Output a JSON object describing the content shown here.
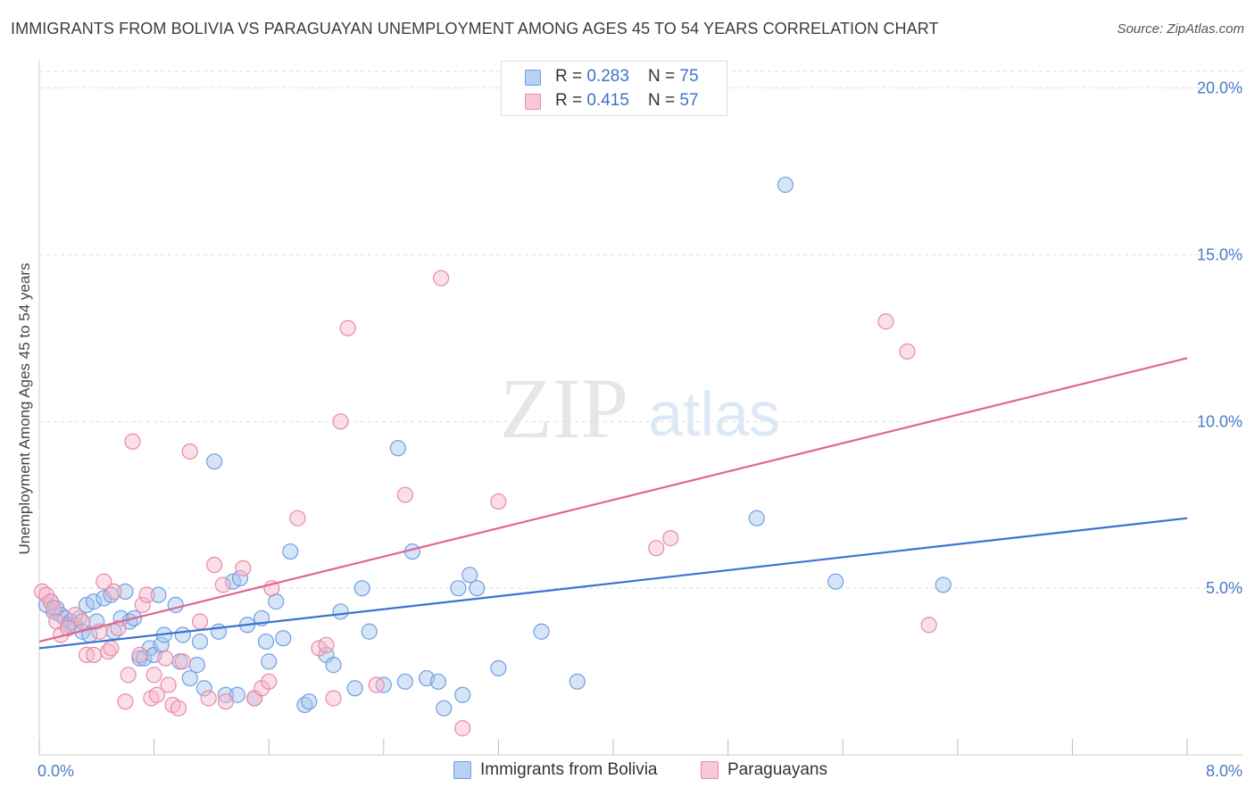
{
  "header": {
    "title": "IMMIGRANTS FROM BOLIVIA VS PARAGUAYAN UNEMPLOYMENT AMONG AGES 45 TO 54 YEARS CORRELATION CHART",
    "source": "Source: ZipAtlas.com"
  },
  "watermark": {
    "zip": "ZIP",
    "atlas": "atlas"
  },
  "legend": {
    "r_label": "R = ",
    "n_label": "N = ",
    "series": [
      {
        "r": "0.283",
        "n": "75",
        "color": "#6fa0e0",
        "fill": "#b8d0f3"
      },
      {
        "r": "0.415",
        "n": "57",
        "color": "#e88aa8",
        "fill": "#f8c8d6"
      }
    ]
  },
  "chart_data": {
    "type": "scatter",
    "ylabel": "Unemployment Among Ages 45 to 54 years",
    "xlim": [
      0,
      8
    ],
    "ylim": [
      0,
      20.5
    ],
    "x_tick_labels": [
      "0.0%",
      "8.0%"
    ],
    "y_ticks": [
      5,
      10,
      15,
      20
    ],
    "y_tick_labels": [
      "5.0%",
      "10.0%",
      "15.0%",
      "20.0%"
    ],
    "grid": true,
    "series": [
      {
        "name": "Immigrants from Bolivia",
        "color": "#3a74d0",
        "point_fill": "rgba(164,196,240,0.45)",
        "point_stroke": "#6fa0e0",
        "trend": [
          [
            0,
            3.2
          ],
          [
            8,
            7.1
          ]
        ],
        "points": [
          [
            0.05,
            4.5
          ],
          [
            0.08,
            4.6
          ],
          [
            0.1,
            4.3
          ],
          [
            0.12,
            4.4
          ],
          [
            0.15,
            4.2
          ],
          [
            0.18,
            4.1
          ],
          [
            0.2,
            3.9
          ],
          [
            0.22,
            4.0
          ],
          [
            0.25,
            3.9
          ],
          [
            0.28,
            4.1
          ],
          [
            0.3,
            3.7
          ],
          [
            0.33,
            4.5
          ],
          [
            0.35,
            3.6
          ],
          [
            0.38,
            4.6
          ],
          [
            0.4,
            4.0
          ],
          [
            0.45,
            4.7
          ],
          [
            0.5,
            4.8
          ],
          [
            0.52,
            3.7
          ],
          [
            0.57,
            4.1
          ],
          [
            0.6,
            4.9
          ],
          [
            0.63,
            4.0
          ],
          [
            0.66,
            4.1
          ],
          [
            0.7,
            2.9
          ],
          [
            0.73,
            2.9
          ],
          [
            0.77,
            3.2
          ],
          [
            0.8,
            3.0
          ],
          [
            0.83,
            4.8
          ],
          [
            0.85,
            3.3
          ],
          [
            0.87,
            3.6
          ],
          [
            0.95,
            4.5
          ],
          [
            0.98,
            2.8
          ],
          [
            1.0,
            3.6
          ],
          [
            1.05,
            2.3
          ],
          [
            1.1,
            2.7
          ],
          [
            1.12,
            3.4
          ],
          [
            1.15,
            2.0
          ],
          [
            1.22,
            8.8
          ],
          [
            1.25,
            3.7
          ],
          [
            1.3,
            1.8
          ],
          [
            1.35,
            5.2
          ],
          [
            1.38,
            1.8
          ],
          [
            1.4,
            5.3
          ],
          [
            1.45,
            3.9
          ],
          [
            1.5,
            1.7
          ],
          [
            1.55,
            4.1
          ],
          [
            1.58,
            3.4
          ],
          [
            1.6,
            2.8
          ],
          [
            1.65,
            4.6
          ],
          [
            1.7,
            3.5
          ],
          [
            1.75,
            6.1
          ],
          [
            1.85,
            1.5
          ],
          [
            1.88,
            1.6
          ],
          [
            2.0,
            3.0
          ],
          [
            2.05,
            2.7
          ],
          [
            2.1,
            4.3
          ],
          [
            2.2,
            2.0
          ],
          [
            2.25,
            5.0
          ],
          [
            2.3,
            3.7
          ],
          [
            2.4,
            2.1
          ],
          [
            2.5,
            9.2
          ],
          [
            2.55,
            2.2
          ],
          [
            2.6,
            6.1
          ],
          [
            2.7,
            2.3
          ],
          [
            2.78,
            2.2
          ],
          [
            2.82,
            1.4
          ],
          [
            2.92,
            5.0
          ],
          [
            2.95,
            1.8
          ],
          [
            3.0,
            5.4
          ],
          [
            3.05,
            5.0
          ],
          [
            3.2,
            2.6
          ],
          [
            3.5,
            3.7
          ],
          [
            3.75,
            2.2
          ],
          [
            5.0,
            7.1
          ],
          [
            5.2,
            17.1
          ],
          [
            5.55,
            5.2
          ],
          [
            6.3,
            5.1
          ]
        ]
      },
      {
        "name": "Paraguayans",
        "color": "#e0668e",
        "point_fill": "rgba(246,182,202,0.45)",
        "point_stroke": "#e88aa8",
        "trend": [
          [
            0,
            3.4
          ],
          [
            8,
            11.9
          ]
        ],
        "points": [
          [
            0.02,
            4.9
          ],
          [
            0.05,
            4.8
          ],
          [
            0.08,
            4.6
          ],
          [
            0.1,
            4.4
          ],
          [
            0.12,
            4.0
          ],
          [
            0.15,
            3.6
          ],
          [
            0.2,
            3.8
          ],
          [
            0.25,
            4.2
          ],
          [
            0.3,
            4.0
          ],
          [
            0.33,
            3.0
          ],
          [
            0.38,
            3.0
          ],
          [
            0.42,
            3.7
          ],
          [
            0.45,
            5.2
          ],
          [
            0.48,
            3.1
          ],
          [
            0.5,
            3.2
          ],
          [
            0.52,
            4.9
          ],
          [
            0.55,
            3.8
          ],
          [
            0.6,
            1.6
          ],
          [
            0.62,
            2.4
          ],
          [
            0.65,
            9.4
          ],
          [
            0.7,
            3.0
          ],
          [
            0.72,
            4.5
          ],
          [
            0.75,
            4.8
          ],
          [
            0.78,
            1.7
          ],
          [
            0.8,
            2.4
          ],
          [
            0.82,
            1.8
          ],
          [
            0.88,
            2.9
          ],
          [
            0.9,
            2.1
          ],
          [
            0.93,
            1.5
          ],
          [
            0.97,
            1.4
          ],
          [
            1.0,
            2.8
          ],
          [
            1.05,
            9.1
          ],
          [
            1.12,
            4.0
          ],
          [
            1.18,
            1.7
          ],
          [
            1.22,
            5.7
          ],
          [
            1.28,
            5.1
          ],
          [
            1.3,
            1.6
          ],
          [
            1.42,
            5.6
          ],
          [
            1.5,
            1.7
          ],
          [
            1.55,
            2.0
          ],
          [
            1.6,
            2.2
          ],
          [
            1.62,
            5.0
          ],
          [
            1.8,
            7.1
          ],
          [
            1.95,
            3.2
          ],
          [
            2.0,
            3.3
          ],
          [
            2.05,
            1.7
          ],
          [
            2.1,
            10.0
          ],
          [
            2.15,
            12.8
          ],
          [
            2.35,
            2.1
          ],
          [
            2.55,
            7.8
          ],
          [
            2.8,
            14.3
          ],
          [
            2.95,
            0.8
          ],
          [
            3.2,
            7.6
          ],
          [
            4.3,
            6.2
          ],
          [
            4.4,
            6.5
          ],
          [
            5.9,
            13.0
          ],
          [
            6.05,
            12.1
          ],
          [
            6.2,
            3.9
          ]
        ]
      }
    ]
  }
}
